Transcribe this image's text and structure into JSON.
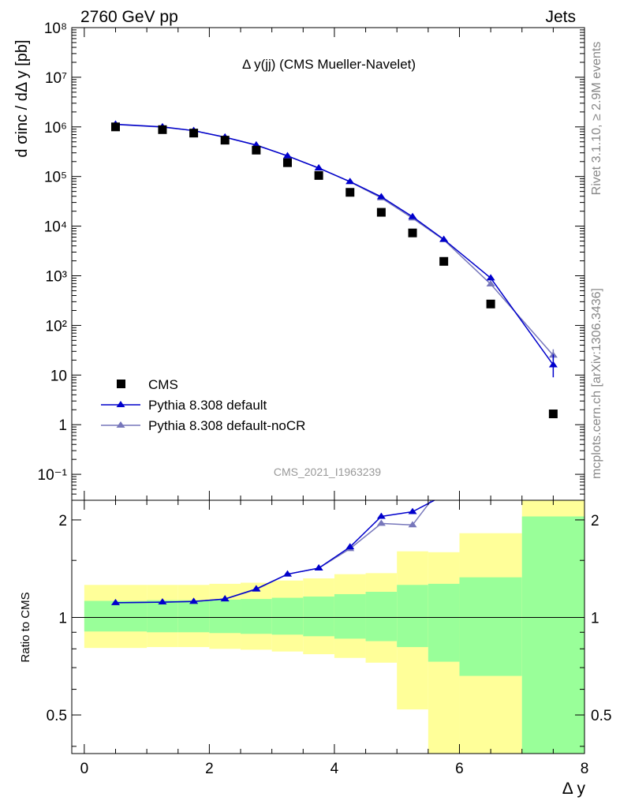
{
  "header": {
    "left": "2760 GeV pp",
    "right": "Jets"
  },
  "side_text": {
    "rivet": "Rivet 3.1.10, ≥ 2.9M events",
    "mcplots": "mcplots.cern.ch [arXiv:1306.3436]"
  },
  "watermark": "CMS_2021_I1963239",
  "chart_data": [
    {
      "type": "scatter",
      "title": "Δ y(jj) (CMS Mueller-Navelet)",
      "ylabel": "d σinc / dΔ y [pb]",
      "xlabel": "Δ y",
      "xlim": [
        -0.2,
        8
      ],
      "ylim": [
        0.03,
        100000000
      ],
      "yscale": "log",
      "x_ticks": [
        0,
        2,
        4,
        6,
        8
      ],
      "y_ticks": [
        {
          "value": 0.1,
          "label": "10⁻¹"
        },
        {
          "value": 1,
          "label": "1"
        },
        {
          "value": 10,
          "label": "10"
        },
        {
          "value": 100,
          "label": "10²"
        },
        {
          "value": 1000,
          "label": "10³"
        },
        {
          "value": 10000,
          "label": "10⁴"
        },
        {
          "value": 100000,
          "label": "10⁵"
        },
        {
          "value": 1000000,
          "label": "10⁶"
        },
        {
          "value": 10000000,
          "label": "10⁷"
        },
        {
          "value": 100000000,
          "label": "10⁸"
        }
      ],
      "legend_position": "bottom-left",
      "series": [
        {
          "name": "CMS",
          "style": "square-marker",
          "color": "#000000",
          "x": [
            0.5,
            1.25,
            1.75,
            2.25,
            2.75,
            3.25,
            3.75,
            4.25,
            4.75,
            5.25,
            5.75,
            6.5,
            7.5
          ],
          "y": [
            1000000,
            880000,
            750000,
            540000,
            340000,
            190000,
            105000,
            48000,
            19000,
            7300,
            1950,
            270,
            1.65
          ]
        },
        {
          "name": "Pythia 8.308 default",
          "style": "line-triangle",
          "color": "#0000cc",
          "x": [
            0.5,
            1.25,
            1.75,
            2.25,
            2.75,
            3.25,
            3.75,
            4.25,
            4.75,
            5.25,
            5.75,
            6.5,
            7.5
          ],
          "y": [
            1130000,
            1000000,
            840000,
            620000,
            430000,
            260000,
            148000,
            79000,
            39000,
            15500,
            5400,
            900,
            16
          ],
          "err_low": [
            0,
            0,
            0,
            0,
            0,
            0,
            0,
            0,
            0,
            0,
            0,
            0,
            7
          ],
          "err_high": [
            0,
            0,
            0,
            0,
            0,
            0,
            0,
            0,
            0,
            0,
            0,
            0,
            10
          ]
        },
        {
          "name": "Pythia 8.308 default-noCR",
          "style": "line-triangle",
          "color": "#7777bb",
          "x": [
            0.5,
            1.25,
            1.75,
            2.25,
            2.75,
            3.25,
            3.75,
            4.25,
            4.75,
            5.25,
            5.75,
            6.5,
            7.5
          ],
          "y": [
            1120000,
            990000,
            840000,
            620000,
            430000,
            260000,
            148000,
            78000,
            37000,
            14500,
            5300,
            680,
            25
          ],
          "err_low": [
            0,
            0,
            0,
            0,
            0,
            0,
            0,
            0,
            0,
            0,
            0,
            0,
            5
          ],
          "err_high": [
            0,
            0,
            0,
            0,
            0,
            0,
            0,
            0,
            0,
            0,
            0,
            0,
            8
          ]
        }
      ]
    },
    {
      "type": "line",
      "ylabel": "Ratio to CMS",
      "xlabel": "Δ y",
      "xlim": [
        -0.2,
        8
      ],
      "ylim": [
        0.38,
        2.3
      ],
      "yscale": "log",
      "y_ticks": [
        {
          "value": 0.5,
          "label": "0.5"
        },
        {
          "value": 1,
          "label": "1"
        },
        {
          "value": 2,
          "label": "2"
        }
      ],
      "reference_line": 1,
      "bin_edges": [
        0,
        1,
        1.5,
        2,
        2.5,
        3,
        3.5,
        4,
        4.5,
        5,
        5.5,
        6,
        7,
        8
      ],
      "band_inner": {
        "color": "#99ff99",
        "low": [
          0.905,
          0.9,
          0.9,
          0.895,
          0.89,
          0.885,
          0.875,
          0.86,
          0.845,
          0.81,
          0.73,
          0.66,
          0.36
        ],
        "high": [
          1.125,
          1.13,
          1.13,
          1.135,
          1.14,
          1.15,
          1.16,
          1.18,
          1.2,
          1.26,
          1.27,
          1.33,
          2.05
        ]
      },
      "band_outer": {
        "color": "#ffff99",
        "low": [
          0.805,
          0.81,
          0.81,
          0.8,
          0.795,
          0.785,
          0.77,
          0.75,
          0.725,
          0.52,
          0.38,
          0.38,
          0.38
        ],
        "high": [
          1.26,
          1.26,
          1.26,
          1.27,
          1.28,
          1.3,
          1.32,
          1.36,
          1.37,
          1.6,
          1.59,
          1.82,
          2.3
        ]
      },
      "series": [
        {
          "name": "Pythia 8.308 default",
          "color": "#0000cc",
          "x": [
            0.5,
            1.25,
            1.75,
            2.25,
            2.75,
            3.25,
            3.75,
            4.25,
            4.75,
            5.25,
            5.6
          ],
          "y": [
            1.11,
            1.115,
            1.12,
            1.14,
            1.225,
            1.36,
            1.42,
            1.65,
            2.05,
            2.12,
            2.3
          ],
          "markers": [
            true,
            true,
            true,
            true,
            true,
            true,
            true,
            true,
            true,
            true,
            false
          ]
        },
        {
          "name": "Pythia 8.308 default-noCR",
          "color": "#7777bb",
          "x": [
            0.5,
            1.25,
            1.75,
            2.25,
            2.75,
            3.25,
            3.75,
            4.25,
            4.75,
            5.25,
            5.55
          ],
          "y": [
            1.11,
            1.115,
            1.12,
            1.14,
            1.22,
            1.36,
            1.42,
            1.63,
            1.95,
            1.93,
            2.3
          ],
          "markers": [
            true,
            true,
            true,
            true,
            true,
            true,
            true,
            true,
            true,
            true,
            false
          ]
        }
      ]
    }
  ]
}
